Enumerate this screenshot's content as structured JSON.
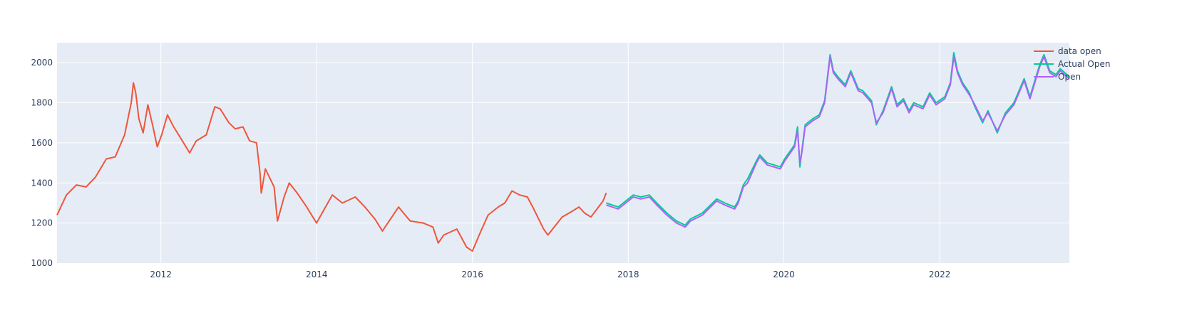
{
  "chart_data": {
    "type": "line",
    "title": "",
    "xlabel": "",
    "ylabel": "",
    "xlim": [
      "2010-09-01",
      "2023-09-01"
    ],
    "ylim": [
      1000,
      2100
    ],
    "grid": true,
    "legend_position": "top-right",
    "x_ticks": [
      "2012",
      "2014",
      "2016",
      "2018",
      "2020",
      "2022"
    ],
    "x_tick_dates": [
      "2012-01-01",
      "2014-01-01",
      "2016-01-01",
      "2018-01-01",
      "2020-01-01",
      "2022-01-01"
    ],
    "y_ticks": [
      1000,
      1200,
      1400,
      1600,
      1800,
      2000
    ],
    "colors": {
      "plot_background": "#e5ecf6",
      "grid": "#ffffff",
      "tick_text": "#2a3f5f"
    },
    "series": [
      {
        "name": "data open",
        "color": "#ef553b",
        "x": [
          "2010-09-01",
          "2010-10-15",
          "2010-12-01",
          "2011-01-15",
          "2011-03-01",
          "2011-04-20",
          "2011-06-01",
          "2011-07-15",
          "2011-08-15",
          "2011-08-25",
          "2011-09-05",
          "2011-09-20",
          "2011-10-10",
          "2011-11-01",
          "2011-11-25",
          "2011-12-15",
          "2012-01-05",
          "2012-02-01",
          "2012-03-01",
          "2012-04-05",
          "2012-05-15",
          "2012-06-15",
          "2012-08-01",
          "2012-09-10",
          "2012-10-05",
          "2012-11-15",
          "2012-12-15",
          "2013-01-20",
          "2013-02-20",
          "2013-03-25",
          "2013-04-10",
          "2013-04-16",
          "2013-05-05",
          "2013-06-15",
          "2013-07-01",
          "2013-08-01",
          "2013-08-25",
          "2013-10-01",
          "2013-11-15",
          "2013-12-31",
          "2014-03-15",
          "2014-05-01",
          "2014-07-01",
          "2014-08-15",
          "2014-10-01",
          "2014-11-05",
          "2015-01-20",
          "2015-03-15",
          "2015-05-15",
          "2015-06-30",
          "2015-07-25",
          "2015-08-20",
          "2015-10-20",
          "2015-12-05",
          "2016-01-01",
          "2016-02-10",
          "2016-03-15",
          "2016-05-01",
          "2016-06-01",
          "2016-07-05",
          "2016-08-10",
          "2016-09-15",
          "2016-10-15",
          "2016-11-30",
          "2016-12-20",
          "2017-02-25",
          "2017-04-15",
          "2017-05-15",
          "2017-06-10",
          "2017-07-10",
          "2017-09-05",
          "2017-09-20"
        ],
        "values": [
          1240,
          1340,
          1390,
          1380,
          1430,
          1520,
          1530,
          1640,
          1800,
          1900,
          1850,
          1720,
          1650,
          1790,
          1680,
          1580,
          1640,
          1740,
          1680,
          1620,
          1550,
          1610,
          1640,
          1780,
          1770,
          1700,
          1670,
          1680,
          1610,
          1600,
          1450,
          1350,
          1470,
          1380,
          1210,
          1330,
          1400,
          1350,
          1280,
          1200,
          1340,
          1300,
          1330,
          1280,
          1220,
          1160,
          1280,
          1210,
          1200,
          1180,
          1100,
          1140,
          1170,
          1080,
          1060,
          1160,
          1240,
          1280,
          1300,
          1360,
          1340,
          1330,
          1270,
          1170,
          1140,
          1230,
          1260,
          1280,
          1250,
          1230,
          1310,
          1350
        ]
      },
      {
        "name": "Actual Open",
        "color": "#00cc96",
        "x": [
          "2017-09-20",
          "2017-11-15",
          "2018-01-25",
          "2018-03-01",
          "2018-04-10",
          "2018-05-15",
          "2018-07-01",
          "2018-08-15",
          "2018-09-25",
          "2018-10-20",
          "2018-12-15",
          "2019-02-20",
          "2019-03-30",
          "2019-05-15",
          "2019-06-01",
          "2019-06-25",
          "2019-07-15",
          "2019-08-25",
          "2019-09-10",
          "2019-10-15",
          "2019-12-15",
          "2020-01-05",
          "2020-02-20",
          "2020-03-05",
          "2020-03-16",
          "2020-03-25",
          "2020-04-10",
          "2020-05-15",
          "2020-06-15",
          "2020-07-10",
          "2020-08-05",
          "2020-08-20",
          "2020-09-10",
          "2020-10-15",
          "2020-11-10",
          "2020-12-15",
          "2021-01-05",
          "2021-02-15",
          "2021-03-10",
          "2021-04-10",
          "2021-05-20",
          "2021-06-15",
          "2021-07-15",
          "2021-08-10",
          "2021-09-01",
          "2021-10-15",
          "2021-11-15",
          "2021-12-15",
          "2022-01-25",
          "2022-02-20",
          "2022-03-08",
          "2022-03-25",
          "2022-04-18",
          "2022-05-20",
          "2022-06-15",
          "2022-07-21",
          "2022-08-15",
          "2022-09-28",
          "2022-11-05",
          "2022-12-15",
          "2023-02-01",
          "2023-02-28",
          "2023-04-15",
          "2023-05-05",
          "2023-06-01",
          "2023-06-30",
          "2023-07-20",
          "2023-09-01"
        ],
        "values": [
          1300,
          1280,
          1340,
          1330,
          1340,
          1300,
          1250,
          1210,
          1190,
          1220,
          1250,
          1320,
          1300,
          1280,
          1310,
          1390,
          1420,
          1510,
          1540,
          1500,
          1480,
          1520,
          1590,
          1680,
          1480,
          1560,
          1690,
          1720,
          1740,
          1810,
          2040,
          1960,
          1930,
          1890,
          1960,
          1870,
          1860,
          1810,
          1690,
          1760,
          1880,
          1790,
          1820,
          1760,
          1800,
          1780,
          1850,
          1800,
          1830,
          1900,
          2050,
          1960,
          1900,
          1850,
          1780,
          1700,
          1760,
          1650,
          1750,
          1800,
          1920,
          1830,
          1990,
          2040,
          1960,
          1940,
          1970,
          1930
        ]
      },
      {
        "name": "Open",
        "color": "#ab63fa",
        "x": [
          "2017-09-20",
          "2017-11-15",
          "2018-01-25",
          "2018-03-01",
          "2018-04-10",
          "2018-05-15",
          "2018-07-01",
          "2018-08-15",
          "2018-09-25",
          "2018-10-20",
          "2018-12-15",
          "2019-02-20",
          "2019-03-30",
          "2019-05-15",
          "2019-06-01",
          "2019-06-25",
          "2019-07-15",
          "2019-08-25",
          "2019-09-10",
          "2019-10-15",
          "2019-12-15",
          "2020-01-05",
          "2020-02-20",
          "2020-03-05",
          "2020-03-16",
          "2020-03-25",
          "2020-04-10",
          "2020-05-15",
          "2020-06-15",
          "2020-07-10",
          "2020-08-05",
          "2020-08-20",
          "2020-09-10",
          "2020-10-15",
          "2020-11-10",
          "2020-12-15",
          "2021-01-05",
          "2021-02-15",
          "2021-03-10",
          "2021-04-10",
          "2021-05-20",
          "2021-06-15",
          "2021-07-15",
          "2021-08-10",
          "2021-09-01",
          "2021-10-15",
          "2021-11-15",
          "2021-12-15",
          "2022-01-25",
          "2022-02-20",
          "2022-03-08",
          "2022-03-25",
          "2022-04-18",
          "2022-05-20",
          "2022-06-15",
          "2022-07-21",
          "2022-08-15",
          "2022-09-28",
          "2022-11-05",
          "2022-12-15",
          "2023-02-01",
          "2023-02-28",
          "2023-04-15",
          "2023-05-05",
          "2023-06-01",
          "2023-06-30",
          "2023-07-20",
          "2023-09-01"
        ],
        "values": [
          1290,
          1270,
          1330,
          1320,
          1330,
          1290,
          1240,
          1200,
          1180,
          1210,
          1240,
          1310,
          1290,
          1270,
          1300,
          1380,
          1400,
          1500,
          1530,
          1490,
          1470,
          1510,
          1580,
          1660,
          1500,
          1550,
          1680,
          1710,
          1730,
          1800,
          2030,
          1950,
          1920,
          1880,
          1950,
          1860,
          1850,
          1800,
          1700,
          1750,
          1870,
          1780,
          1810,
          1750,
          1790,
          1770,
          1840,
          1790,
          1820,
          1890,
          2030,
          1950,
          1890,
          1840,
          1790,
          1710,
          1750,
          1660,
          1740,
          1790,
          1910,
          1820,
          1980,
          2030,
          1950,
          1930,
          1960,
          1920
        ]
      }
    ]
  }
}
